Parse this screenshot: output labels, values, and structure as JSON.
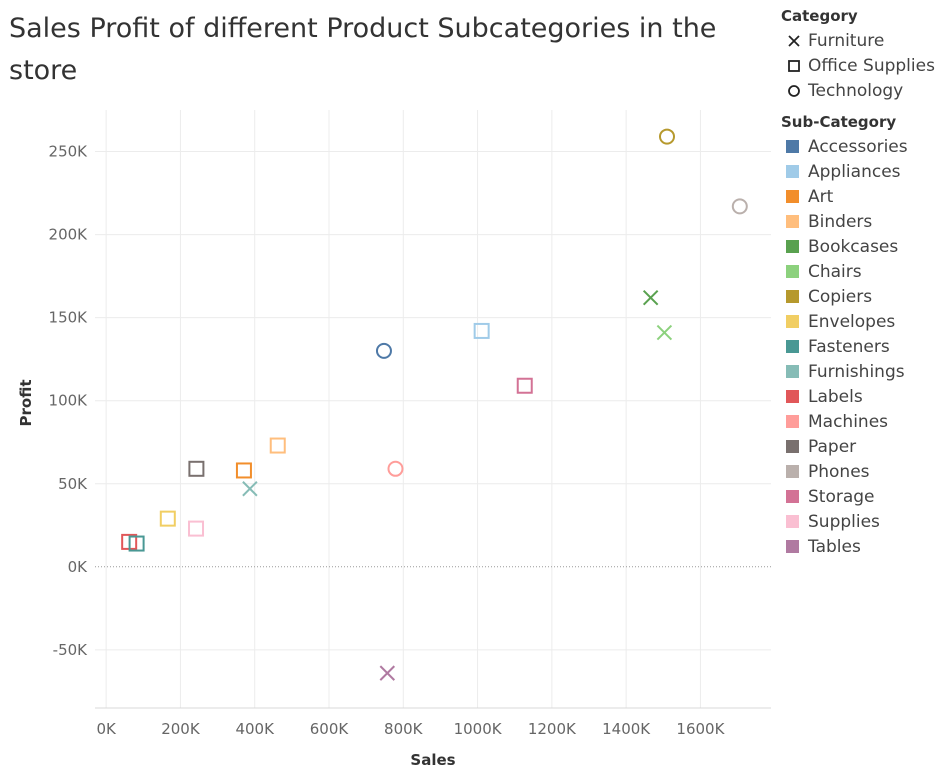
{
  "chart_data": {
    "type": "scatter",
    "title": "Sales Profit of different Product Subcategories in the store",
    "xlabel": "Sales",
    "ylabel": "Profit",
    "xlim": [
      -30000,
      1790000
    ],
    "ylim": [
      -85000,
      275000
    ],
    "x_ticks": [
      0,
      200000,
      400000,
      600000,
      800000,
      1000000,
      1200000,
      1400000,
      1600000
    ],
    "x_tick_labels": [
      "0K",
      "200K",
      "400K",
      "600K",
      "800K",
      "1000K",
      "1200K",
      "1400K",
      "1600K"
    ],
    "y_ticks": [
      -50000,
      0,
      50000,
      100000,
      150000,
      200000,
      250000
    ],
    "y_tick_labels": [
      "-50K",
      "0K",
      "50K",
      "100K",
      "150K",
      "200K",
      "250K"
    ],
    "grid": true,
    "zero_line": true,
    "legend_position": "right",
    "category_legend_title": "Category",
    "categories": [
      {
        "name": "Furniture",
        "marker": "x"
      },
      {
        "name": "Office Supplies",
        "marker": "square"
      },
      {
        "name": "Technology",
        "marker": "circle"
      }
    ],
    "subcategory_legend_title": "Sub-Category",
    "subcategories": [
      {
        "name": "Accessories",
        "color": "#4e79a7"
      },
      {
        "name": "Appliances",
        "color": "#a0cbe8"
      },
      {
        "name": "Art",
        "color": "#f28e2b"
      },
      {
        "name": "Binders",
        "color": "#ffbe7d"
      },
      {
        "name": "Bookcases",
        "color": "#59a14f"
      },
      {
        "name": "Chairs",
        "color": "#8cd17d"
      },
      {
        "name": "Copiers",
        "color": "#b6992d"
      },
      {
        "name": "Envelopes",
        "color": "#f1ce63"
      },
      {
        "name": "Fasteners",
        "color": "#499894"
      },
      {
        "name": "Furnishings",
        "color": "#86bcb6"
      },
      {
        "name": "Labels",
        "color": "#e15759"
      },
      {
        "name": "Machines",
        "color": "#ff9d9a"
      },
      {
        "name": "Paper",
        "color": "#79706e"
      },
      {
        "name": "Phones",
        "color": "#bab0ac"
      },
      {
        "name": "Storage",
        "color": "#d37295"
      },
      {
        "name": "Supplies",
        "color": "#fabfd2"
      },
      {
        "name": "Tables",
        "color": "#b07aa1"
      }
    ],
    "points": [
      {
        "subcategory": "Copiers",
        "category": "Technology",
        "x": 1510000,
        "y": 259000
      },
      {
        "subcategory": "Phones",
        "category": "Technology",
        "x": 1706000,
        "y": 217000
      },
      {
        "subcategory": "Bookcases",
        "category": "Furniture",
        "x": 1466000,
        "y": 162000
      },
      {
        "subcategory": "Chairs",
        "category": "Furniture",
        "x": 1503000,
        "y": 141000
      },
      {
        "subcategory": "Appliances",
        "category": "Office Supplies",
        "x": 1011000,
        "y": 142000
      },
      {
        "subcategory": "Accessories",
        "category": "Technology",
        "x": 748000,
        "y": 130000
      },
      {
        "subcategory": "Storage",
        "category": "Office Supplies",
        "x": 1127000,
        "y": 109000
      },
      {
        "subcategory": "Binders",
        "category": "Office Supplies",
        "x": 462000,
        "y": 73000
      },
      {
        "subcategory": "Machines",
        "category": "Technology",
        "x": 779000,
        "y": 59000
      },
      {
        "subcategory": "Paper",
        "category": "Office Supplies",
        "x": 243000,
        "y": 59000
      },
      {
        "subcategory": "Art",
        "category": "Office Supplies",
        "x": 371000,
        "y": 58000
      },
      {
        "subcategory": "Furnishings",
        "category": "Furniture",
        "x": 387000,
        "y": 47000
      },
      {
        "subcategory": "Envelopes",
        "category": "Office Supplies",
        "x": 166000,
        "y": 29000
      },
      {
        "subcategory": "Supplies",
        "category": "Office Supplies",
        "x": 242000,
        "y": 23000
      },
      {
        "subcategory": "Labels",
        "category": "Office Supplies",
        "x": 62000,
        "y": 15000
      },
      {
        "subcategory": "Fasteners",
        "category": "Office Supplies",
        "x": 82000,
        "y": 14000
      },
      {
        "subcategory": "Tables",
        "category": "Furniture",
        "x": 757000,
        "y": -64000
      }
    ]
  }
}
